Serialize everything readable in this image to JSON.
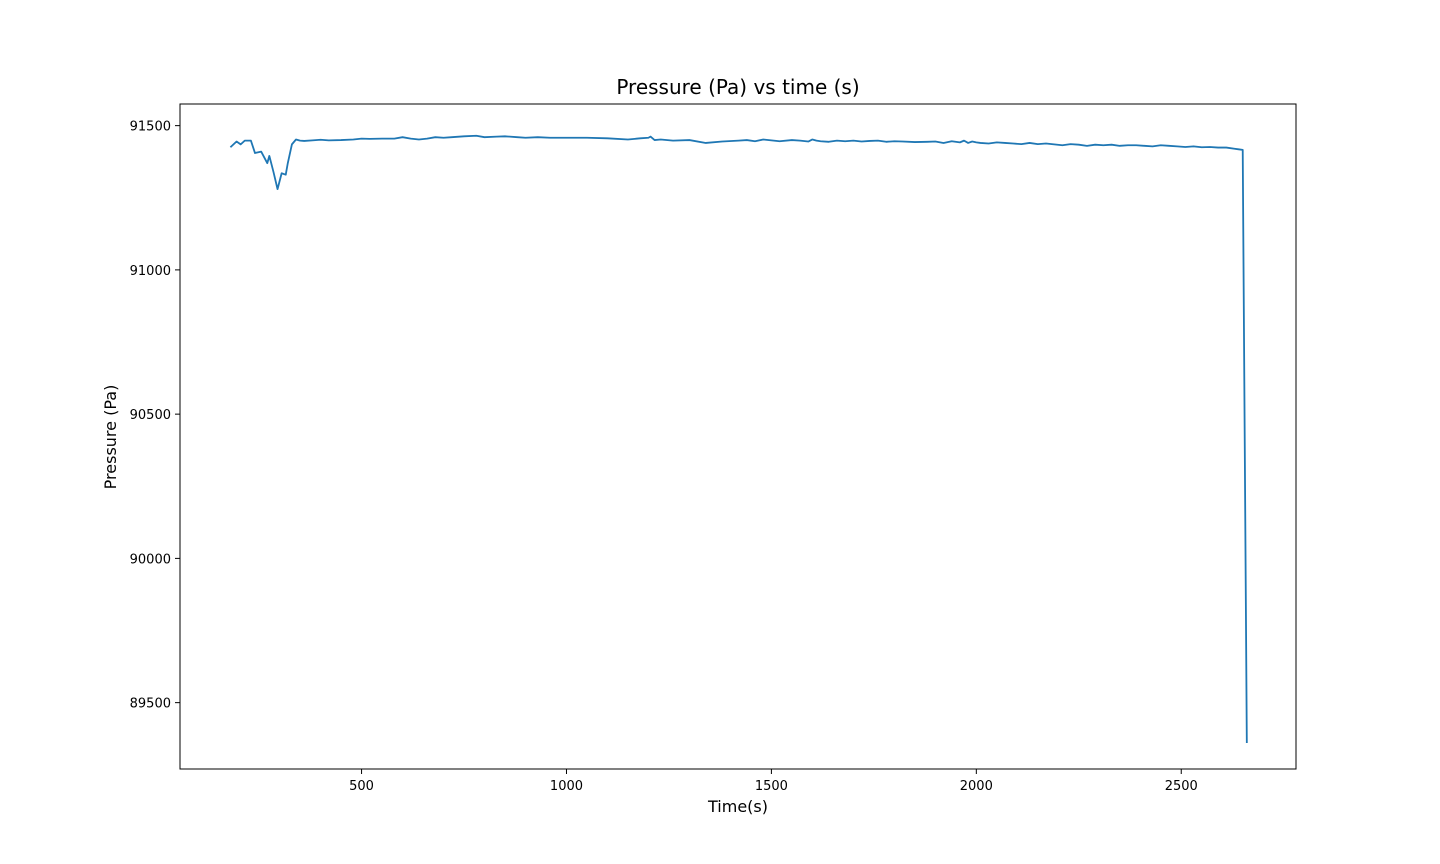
{
  "chart_data": {
    "type": "line",
    "title": "Pressure (Pa) vs time (s)",
    "xlabel": "Time(s)",
    "ylabel": "Pressure (Pa)",
    "xlim": [
      57,
      2780
    ],
    "ylim": [
      89270,
      91575
    ],
    "xticks": [
      500,
      1000,
      1500,
      2000,
      2500
    ],
    "xtick_labels": [
      "500",
      "1000",
      "1500",
      "2000",
      "2500"
    ],
    "yticks": [
      89500,
      90000,
      90500,
      91000,
      91500
    ],
    "ytick_labels": [
      "89500",
      "90000",
      "90500",
      "91000",
      "91500"
    ],
    "grid": false,
    "legend": "none",
    "line_color": "#1f77b4",
    "series": [
      {
        "x": [
          180,
          195,
          205,
          215,
          230,
          240,
          255,
          270,
          275,
          285,
          295,
          305,
          315,
          320,
          330,
          340,
          350,
          360,
          380,
          400,
          420,
          450,
          480,
          500,
          520,
          550,
          580,
          600,
          620,
          640,
          660,
          680,
          700,
          720,
          750,
          780,
          800,
          830,
          850,
          880,
          900,
          930,
          960,
          1000,
          1050,
          1100,
          1150,
          1180,
          1200,
          1205,
          1215,
          1230,
          1260,
          1300,
          1340,
          1380,
          1420,
          1440,
          1460,
          1480,
          1500,
          1520,
          1550,
          1570,
          1590,
          1600,
          1610,
          1620,
          1640,
          1660,
          1680,
          1700,
          1720,
          1740,
          1760,
          1780,
          1800,
          1820,
          1850,
          1880,
          1900,
          1920,
          1940,
          1960,
          1970,
          1980,
          1990,
          2000,
          2010,
          2030,
          2050,
          2070,
          2090,
          2110,
          2130,
          2150,
          2170,
          2190,
          2210,
          2230,
          2250,
          2270,
          2290,
          2310,
          2330,
          2350,
          2370,
          2390,
          2410,
          2430,
          2450,
          2470,
          2490,
          2510,
          2530,
          2550,
          2570,
          2590,
          2610,
          2630,
          2640,
          2650,
          2660
        ],
        "y": [
          91425,
          91445,
          91435,
          91448,
          91448,
          91405,
          91410,
          91370,
          91395,
          91340,
          91280,
          91335,
          91330,
          91370,
          91435,
          91452,
          91448,
          91447,
          91449,
          91451,
          91449,
          91450,
          91452,
          91455,
          91454,
          91455,
          91455,
          91460,
          91455,
          91452,
          91455,
          91460,
          91458,
          91460,
          91463,
          91465,
          91460,
          91462,
          91463,
          91460,
          91458,
          91460,
          91458,
          91458,
          91458,
          91456,
          91452,
          91456,
          91458,
          91462,
          91450,
          91452,
          91448,
          91450,
          91440,
          91445,
          91448,
          91450,
          91446,
          91452,
          91449,
          91446,
          91450,
          91448,
          91445,
          91452,
          91448,
          91446,
          91444,
          91448,
          91446,
          91448,
          91445,
          91447,
          91448,
          91444,
          91446,
          91445,
          91443,
          91444,
          91445,
          91440,
          91446,
          91442,
          91448,
          91440,
          91445,
          91442,
          91440,
          91438,
          91442,
          91440,
          91438,
          91436,
          91440,
          91436,
          91438,
          91435,
          91432,
          91436,
          91434,
          91430,
          91434,
          91432,
          91434,
          91430,
          91432,
          91432,
          91430,
          91428,
          91432,
          91430,
          91428,
          91426,
          91428,
          91425,
          91426,
          91424,
          91424,
          91420,
          91418,
          91416,
          89360
        ]
      }
    ]
  }
}
